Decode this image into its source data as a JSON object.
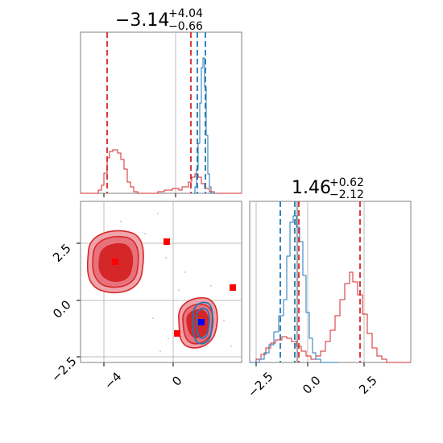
{
  "chart_data": [
    {
      "type": "histogram",
      "panel": "top-left",
      "title": {
        "main": "−3.14",
        "upper": "+4.04",
        "lower": "−0.66"
      },
      "xlim": [
        -4.6,
        2.0
      ],
      "vlines_red": [
        -3.8,
        0.55
      ],
      "vlines_blue": [
        0.75,
        0.97
      ],
      "grid_x": [
        0.0
      ]
    },
    {
      "type": "histogram",
      "panel": "bottom-right",
      "title": {
        "main": "1.46",
        "upper": "+0.62",
        "lower": "−2.12"
      },
      "xlim": [
        -3.0,
        4.3
      ],
      "xticks": [
        -2.5,
        0.0,
        2.5
      ],
      "xtick_labels": [
        "−2.5",
        "0.0",
        "2.5"
      ],
      "vlines_red": [
        -0.6,
        2.1
      ],
      "vlines_blue": [
        -1.45,
        -0.75
      ],
      "vline_gray": [
        -0.66
      ]
    },
    {
      "type": "scatter",
      "panel": "bottom-left",
      "xlim": [
        -4.6,
        2.0
      ],
      "ylim": [
        -2.7,
        4.3
      ],
      "xticks": [
        -4,
        0
      ],
      "xtick_labels": [
        "−4",
        "0"
      ],
      "yticks": [
        -2.5,
        0.0,
        2.5
      ],
      "ytick_labels": [
        "−2.5",
        "0.0",
        "2.5"
      ],
      "grid_x": [
        -3.9,
        0.0
      ],
      "grid_y": [
        -2.5,
        0.0,
        2.5
      ],
      "red_markers": [
        {
          "x": -3.4,
          "y": 1.65
        },
        {
          "x": -0.3,
          "y": 2.5
        },
        {
          "x": 0.25,
          "y": -1.45
        },
        {
          "x": 1.7,
          "y": 0.55
        }
      ],
      "blue_marker": {
        "x": 1.15,
        "y": -0.95
      },
      "colors": {
        "red": "#d62728",
        "blue": "#1f77b4"
      }
    }
  ]
}
